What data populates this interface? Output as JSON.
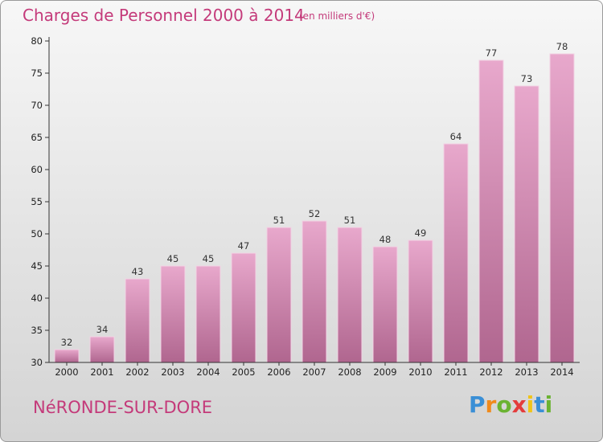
{
  "header": {
    "title": "Charges de Personnel 2000 à 2014",
    "unit": "(en milliers d'€)"
  },
  "footer": {
    "commune": "NéRONDE-SUR-DORE",
    "logo": [
      "P",
      "r",
      "o",
      "x",
      "i",
      "t",
      "i"
    ]
  },
  "colors": {
    "title": "#c43a7a",
    "bar_top": "#e8a8cc",
    "bar_bottom": "#b0668f",
    "logo": [
      "#3a8fd6",
      "#f08a1c",
      "#6bb332",
      "#e43c3c",
      "#f0c419",
      "#3a8fd6",
      "#6bb332"
    ]
  },
  "chart_data": {
    "type": "bar",
    "title": "Charges de Personnel 2000 à 2014",
    "subtitle": "(en milliers d'€)",
    "categories": [
      "2000",
      "2001",
      "2002",
      "2003",
      "2004",
      "2005",
      "2006",
      "2007",
      "2008",
      "2009",
      "2010",
      "2011",
      "2012",
      "2013",
      "2014"
    ],
    "values": [
      32,
      34,
      43,
      45,
      45,
      47,
      51,
      52,
      51,
      48,
      49,
      64,
      77,
      73,
      78
    ],
    "ylim": [
      30,
      80
    ],
    "yticks": [
      30,
      35,
      40,
      45,
      50,
      55,
      60,
      65,
      70,
      75,
      80
    ],
    "grid": false,
    "data_labels": true
  }
}
